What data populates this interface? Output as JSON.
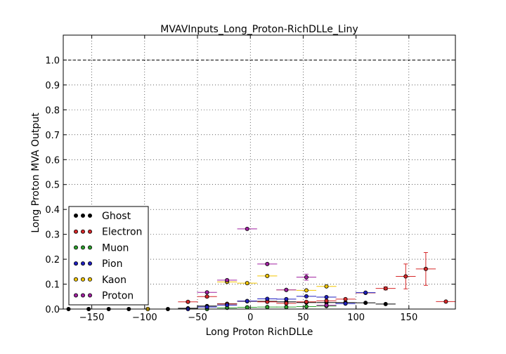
{
  "chart_data": {
    "type": "scatter",
    "title": "MVAVInputs_Long_Proton-RichDLLe_Liny",
    "xlabel": "Long Proton RichDLLe",
    "ylabel": "Long Proton MVA Output",
    "xlim": [
      -177,
      194
    ],
    "ylim": [
      0,
      1.1
    ],
    "xticks": [
      -150,
      -100,
      -50,
      0,
      50,
      100,
      150
    ],
    "xtick_labels": [
      "−150",
      "−100",
      "−50",
      "0",
      "50",
      "100",
      "150"
    ],
    "yticks": [
      0.0,
      0.1,
      0.2,
      0.3,
      0.4,
      0.5,
      0.6,
      0.7,
      0.8,
      0.9,
      1.0
    ],
    "ytick_labels": [
      "0.0",
      "0.1",
      "0.2",
      "0.3",
      "0.4",
      "0.5",
      "0.6",
      "0.7",
      "0.8",
      "0.9",
      "1.0"
    ],
    "grid": true,
    "reference_line": {
      "y": 1.0,
      "style": "dashed"
    },
    "legend_placement": "lower-left",
    "series": [
      {
        "name": "Ghost",
        "color": "#000000",
        "xerr": 9.4,
        "points": [
          {
            "x": -172,
            "y": 0.0
          },
          {
            "x": -153,
            "y": 0.0
          },
          {
            "x": -134,
            "y": 0.0
          },
          {
            "x": -115,
            "y": 0.0
          },
          {
            "x": -97,
            "y": 0.0
          },
          {
            "x": -78,
            "y": 0.0
          },
          {
            "x": -59,
            "y": 0.003
          },
          {
            "x": -41,
            "y": 0.012
          },
          {
            "x": -22,
            "y": 0.021
          },
          {
            "x": -3,
            "y": 0.031
          },
          {
            "x": 16,
            "y": 0.031
          },
          {
            "x": 34,
            "y": 0.029
          },
          {
            "x": 53,
            "y": 0.026
          },
          {
            "x": 72,
            "y": 0.026
          },
          {
            "x": 90,
            "y": 0.026
          },
          {
            "x": 109,
            "y": 0.025
          },
          {
            "x": 128,
            "y": 0.02
          }
        ]
      },
      {
        "name": "Electron",
        "color": "#d62728",
        "xerr": 9.4,
        "points": [
          {
            "x": -59,
            "y": 0.029,
            "yerr": 0.003
          },
          {
            "x": -41,
            "y": 0.05,
            "yerr": 0.003
          },
          {
            "x": -22,
            "y": 0.02
          },
          {
            "x": -3,
            "y": 0.032
          },
          {
            "x": 16,
            "y": 0.029
          },
          {
            "x": 34,
            "y": 0.023
          },
          {
            "x": 53,
            "y": 0.029
          },
          {
            "x": 72,
            "y": 0.033
          },
          {
            "x": 90,
            "y": 0.04
          },
          {
            "x": 109,
            "y": 0.065
          },
          {
            "x": 128,
            "y": 0.083,
            "yerr": 0.006
          },
          {
            "x": 147,
            "y": 0.131,
            "yerr": 0.05
          },
          {
            "x": 166,
            "y": 0.161,
            "yerr": 0.066
          },
          {
            "x": 185,
            "y": 0.03
          }
        ]
      },
      {
        "name": "Muon",
        "color": "#2ca02c",
        "xerr": 9.4,
        "points": [
          {
            "x": -41,
            "y": 0.0
          },
          {
            "x": -22,
            "y": 0.005
          },
          {
            "x": -3,
            "y": 0.007
          },
          {
            "x": 16,
            "y": 0.008
          },
          {
            "x": 34,
            "y": 0.008
          },
          {
            "x": 53,
            "y": 0.01
          },
          {
            "x": 72,
            "y": 0.012
          }
        ]
      },
      {
        "name": "Pion",
        "color": "#1f1fbf",
        "xerr": 9.4,
        "points": [
          {
            "x": -59,
            "y": 0.0
          },
          {
            "x": -41,
            "y": 0.008
          },
          {
            "x": -22,
            "y": 0.016
          },
          {
            "x": -3,
            "y": 0.032
          },
          {
            "x": 16,
            "y": 0.041
          },
          {
            "x": 34,
            "y": 0.04
          },
          {
            "x": 53,
            "y": 0.051
          },
          {
            "x": 72,
            "y": 0.048
          },
          {
            "x": 90,
            "y": 0.022
          },
          {
            "x": 109,
            "y": 0.066
          }
        ]
      },
      {
        "name": "Kaon",
        "color": "#f2c500",
        "xerr": 9.4,
        "points": [
          {
            "x": -97,
            "y": 0.0
          },
          {
            "x": -22,
            "y": 0.109
          },
          {
            "x": -3,
            "y": 0.104
          },
          {
            "x": 16,
            "y": 0.133
          },
          {
            "x": 34,
            "y": 0.077
          },
          {
            "x": 53,
            "y": 0.075
          },
          {
            "x": 72,
            "y": 0.091
          }
        ]
      },
      {
        "name": "Proton",
        "color": "#a020a0",
        "xerr": 9.4,
        "points": [
          {
            "x": -41,
            "y": 0.067
          },
          {
            "x": -22,
            "y": 0.116
          },
          {
            "x": -3,
            "y": 0.322
          },
          {
            "x": 16,
            "y": 0.181
          },
          {
            "x": 34,
            "y": 0.077
          },
          {
            "x": 53,
            "y": 0.128,
            "yerr": 0.012
          },
          {
            "x": 72,
            "y": 0.015
          }
        ]
      }
    ]
  }
}
